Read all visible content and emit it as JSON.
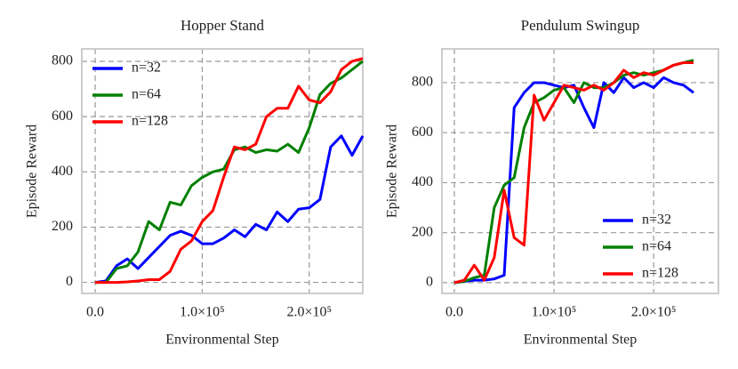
{
  "chart_data": [
    {
      "type": "line",
      "title": "Hopper Stand",
      "xlabel": "Environmental Step",
      "ylabel": "Episode Reward",
      "x": [
        0,
        10000,
        20000,
        30000,
        40000,
        50000,
        60000,
        70000,
        80000,
        90000,
        100000,
        110000,
        120000,
        130000,
        140000,
        150000,
        160000,
        170000,
        180000,
        190000,
        200000,
        210000,
        220000,
        230000,
        240000,
        250000
      ],
      "series": [
        {
          "name": "n=32",
          "color": "#0000ff",
          "values": [
            0,
            5,
            60,
            85,
            50,
            90,
            130,
            170,
            185,
            170,
            140,
            140,
            160,
            190,
            165,
            210,
            190,
            255,
            220,
            265,
            270,
            300,
            490,
            530,
            460,
            530
          ]
        },
        {
          "name": "n=64",
          "color": "#008000",
          "values": [
            0,
            0,
            50,
            60,
            110,
            220,
            190,
            290,
            280,
            350,
            380,
            400,
            410,
            480,
            490,
            470,
            480,
            475,
            500,
            470,
            560,
            680,
            720,
            740,
            770,
            800
          ]
        },
        {
          "name": "n=128",
          "color": "#ff0000",
          "values": [
            0,
            0,
            0,
            2,
            5,
            10,
            10,
            40,
            120,
            150,
            220,
            260,
            380,
            490,
            480,
            500,
            600,
            630,
            630,
            710,
            660,
            650,
            690,
            770,
            800,
            810
          ]
        }
      ],
      "xlim": [
        -12500,
        250000
      ],
      "ylim": [
        -40,
        845
      ],
      "xticks": [
        {
          "value": 0,
          "label": "0.0"
        },
        {
          "value": 100000,
          "label": "1.0×10⁵"
        },
        {
          "value": 200000,
          "label": "2.0×10⁵"
        }
      ],
      "yticks": [
        0,
        200,
        400,
        600,
        800
      ],
      "grid": true,
      "legend": "upper-left"
    },
    {
      "type": "line",
      "title": "Pendulum Swingup",
      "xlabel": "Environmental Step",
      "ylabel": "Episode Reward",
      "x": [
        0,
        10000,
        20000,
        30000,
        40000,
        50000,
        60000,
        70000,
        80000,
        90000,
        100000,
        110000,
        120000,
        130000,
        140000,
        150000,
        160000,
        170000,
        180000,
        190000,
        200000,
        210000,
        220000,
        230000,
        240000
      ],
      "series": [
        {
          "name": "n=32",
          "color": "#0000ff",
          "values": [
            0,
            5,
            10,
            10,
            15,
            30,
            700,
            760,
            800,
            800,
            790,
            780,
            790,
            700,
            620,
            800,
            760,
            820,
            780,
            800,
            780,
            820,
            800,
            790,
            760
          ]
        },
        {
          "name": "n=64",
          "color": "#008000",
          "values": [
            0,
            5,
            20,
            30,
            300,
            390,
            420,
            620,
            720,
            740,
            770,
            780,
            720,
            800,
            780,
            780,
            800,
            830,
            840,
            830,
            840,
            850,
            870,
            880,
            890
          ]
        },
        {
          "name": "n=128",
          "color": "#ff0000",
          "values": [
            0,
            10,
            70,
            10,
            100,
            370,
            180,
            150,
            750,
            650,
            720,
            790,
            780,
            770,
            790,
            770,
            800,
            850,
            820,
            840,
            830,
            850,
            870,
            880,
            880
          ]
        }
      ],
      "xlim": [
        -12500,
        265000
      ],
      "ylim": [
        -43,
        935
      ],
      "xticks": [
        {
          "value": 0,
          "label": "0.0"
        },
        {
          "value": 100000,
          "label": "1.0×10⁵"
        },
        {
          "value": 200000,
          "label": "2.0×10⁵"
        }
      ],
      "yticks": [
        0,
        200,
        400,
        600,
        800
      ],
      "grid": true,
      "legend": "lower-right"
    }
  ]
}
